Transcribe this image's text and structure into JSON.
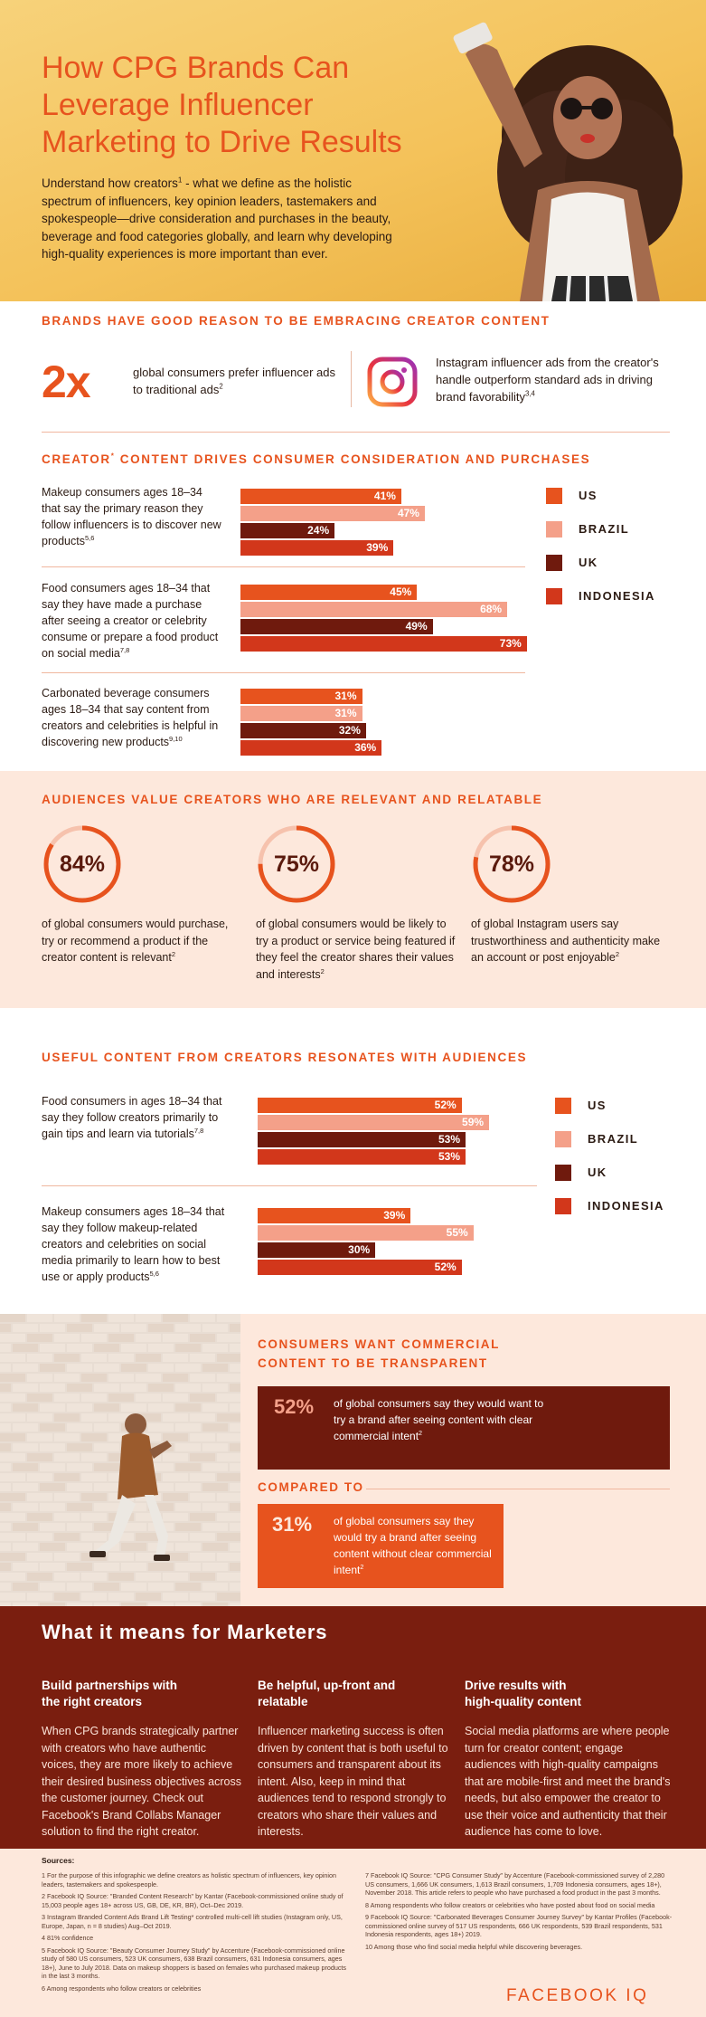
{
  "hero": {
    "title_lines": [
      "How CPG Brands Can",
      "Leverage Influencer",
      "Marketing to Drive Results"
    ],
    "intro_a": "Understand how creators",
    "intro_sup": "1",
    "intro_b": " - what we define as the holistic spectrum of influencers, key opinion leaders, tastemakers and spokespeople—drive consideration and purchases in the beauty, beverage and food categories globally, and learn why developing high-quality experiences is more important than ever."
  },
  "section1": {
    "heading": "Brands have good reason to be embracing creator content",
    "stat_value": "2x",
    "stat_text": "global consumers prefer influencer ads to traditional ads",
    "stat_sup": "2",
    "ig_icon": "instagram-icon",
    "ig_text": "Instagram influencer ads from the creator's handle outperform standard ads in driving brand favorability",
    "ig_sup": "3,4"
  },
  "section2": {
    "heading_a": "Creator",
    "heading_sup": "*",
    "heading_b": " content drives consumer consideration and purchases",
    "legend": [
      {
        "label": "US",
        "color": "#e7531e"
      },
      {
        "label": "BRAZIL",
        "color": "#f4a089"
      },
      {
        "label": "UK",
        "color": "#6f1a0d"
      },
      {
        "label": "INDONESIA",
        "color": "#d2371b"
      }
    ],
    "questions": [
      {
        "text": "Makeup consumers ages 18–34 that say the primary reason they follow influencers is to discover new products",
        "sup": "5,6",
        "labels": [
          "41%",
          "47%",
          "24%",
          "39%"
        ]
      },
      {
        "text": "Food consumers ages 18–34 that say they have made a purchase after seeing a creator or celebrity consume or prepare a food product on social media",
        "sup": "7,8",
        "labels": [
          "45%",
          "68%",
          "49%",
          "73%"
        ]
      },
      {
        "text": "Carbonated beverage consumers ages 18–34 that say content from creators and celebrities is helpful in discovering new products",
        "sup": "9,10",
        "labels": [
          "31%",
          "31%",
          "32%",
          "36%"
        ]
      }
    ]
  },
  "section3": {
    "heading": "Audiences value creators who are relevant and relatable",
    "rings": [
      {
        "value": "84%",
        "pct": 84,
        "text": "of global consumers would purchase, try or recommend a product if the creator content is relevant",
        "sup": "2"
      },
      {
        "value": "75%",
        "pct": 75,
        "text": "of global consumers would be likely to try a product or service being featured if they feel the creator shares their values and interests",
        "sup": "2"
      },
      {
        "value": "78%",
        "pct": 78,
        "text": "of global Instagram users say trustworthiness and authenticity make an account or post enjoyable",
        "sup": "2"
      }
    ]
  },
  "section4": {
    "heading": "Useful content from creators resonates with audiences",
    "legend": [
      {
        "label": "US",
        "color": "#e7531e"
      },
      {
        "label": "BRAZIL",
        "color": "#f4a089"
      },
      {
        "label": "UK",
        "color": "#6f1a0d"
      },
      {
        "label": "INDONESIA",
        "color": "#d2371b"
      }
    ],
    "questions": [
      {
        "text": "Food consumers in ages 18–34 that say they follow creators primarily to gain tips and learn via tutorials",
        "sup": "7,8",
        "labels": [
          "52%",
          "59%",
          "53%",
          "53%"
        ]
      },
      {
        "text": "Makeup consumers ages 18–34 that say they follow makeup-related creators and celebrities on social media primarily to learn how to best use or apply products",
        "sup": "5,6",
        "labels": [
          "39%",
          "55%",
          "30%",
          "52%"
        ]
      }
    ]
  },
  "chart_data": [
    {
      "type": "bar",
      "categories": [
        "Makeup: discover new products",
        "Food: purchase after seeing creator",
        "Carbonated beverage: helpful in discovering"
      ],
      "series": [
        {
          "name": "US",
          "values": [
            41,
            45,
            31
          ]
        },
        {
          "name": "BRAZIL",
          "values": [
            47,
            68,
            31
          ]
        },
        {
          "name": "UK",
          "values": [
            24,
            49,
            32
          ]
        },
        {
          "name": "INDONESIA",
          "values": [
            39,
            73,
            36
          ]
        }
      ]
    },
    {
      "type": "bar",
      "categories": [
        "Food: tips and tutorials",
        "Makeup: learn how to use products"
      ],
      "series": [
        {
          "name": "US",
          "values": [
            52,
            39
          ]
        },
        {
          "name": "BRAZIL",
          "values": [
            59,
            55
          ]
        },
        {
          "name": "UK",
          "values": [
            53,
            30
          ]
        },
        {
          "name": "INDONESIA",
          "values": [
            53,
            52
          ]
        }
      ]
    }
  ],
  "section5": {
    "heading_lines": [
      "Consumers want commercial",
      "content to be transparent"
    ],
    "box1_value": "52%",
    "box1_text": "of global consumers say they would want to try a brand after seeing content with clear commercial intent",
    "box1_sup": "2",
    "compared": "Compared to",
    "box2_value": "31%",
    "box2_text": "of global consumers say they would try a brand after seeing content without clear commercial intent",
    "box2_sup": "2"
  },
  "marketers": {
    "title": "What it means for Marketers",
    "columns": [
      {
        "heading_lines": [
          "Build partnerships with",
          "the right creators"
        ],
        "text": "When CPG brands strategically partner with creators who have authentic voices, they are more likely to achieve their desired business objectives across the customer journey. Check out Facebook's Brand Collabs Manager solution to find the right creator."
      },
      {
        "heading_lines": [
          "Be helpful, up-front and",
          "relatable"
        ],
        "text": "Influencer marketing success is often driven by content that is both useful to consumers and transparent about its intent. Also, keep in mind that audiences tend to respond strongly to creators who share their values and interests."
      },
      {
        "heading_lines": [
          "Drive results with",
          "high-quality content"
        ],
        "text": "Social media platforms are where people turn for creator content; engage audiences with high-quality campaigns that are mobile-first and meet the brand's needs, but also empower the creator to use their voice and authenticity that their audience has come to love."
      }
    ]
  },
  "sources": {
    "heading": "Sources:",
    "left": [
      "1  For the purpose of this infographic we define creators as holistic spectrum of influencers, key opinion leaders, tastemakers and spokespeople.",
      "2  Facebook IQ Source: \"Branded Content Research\" by Kantar (Facebook-commissioned online study of 15,003 people ages 18+ across US, GB, DE, KR, BR), Oct–Dec 2019.",
      "3  Instagram Branded Content Ads Brand Lift Testing* controlled multi-cell lift studies (Instagram only, US, Europe, Japan, n = 8 studies) Aug–Oct 2019.",
      "4  81% confidence",
      "5  Facebook IQ Source: \"Beauty Consumer Journey Study\" by Accenture (Facebook-commissioned online study of 580 US consumers, 523 UK consumers, 638 Brazil consumers, 631 Indonesia consumers, ages 18+), June to July 2018. Data on makeup shoppers is based on females who purchased makeup products in the last 3 months.",
      "6  Among respondents who follow creators or celebrities"
    ],
    "right": [
      "7  Facebook IQ Source: \"CPG Consumer Study\" by Accenture (Facebook-commissioned survey of 2,280 US consumers, 1,666 UK consumers, 1,613 Brazil consumers, 1,709 Indonesia consumers, ages 18+), November 2018. This article refers to people who have purchased a food product in the past 3 months.",
      "8  Among respondents who follow creators or celebrities who have posted about food on social media",
      "9  Facebook IQ Source: \"Carbonated Beverages Consumer Journey Survey\" by Kantar Profiles (Facebook-commissioned online survey of 517 US respondents, 666 UK respondents, 539 Brazil respondents, 531 Indonesia respondents, ages 18+) 2019.",
      "10  Among those who find social media helpful while discovering beverages."
    ],
    "logo": "FACEBOOK IQ"
  }
}
